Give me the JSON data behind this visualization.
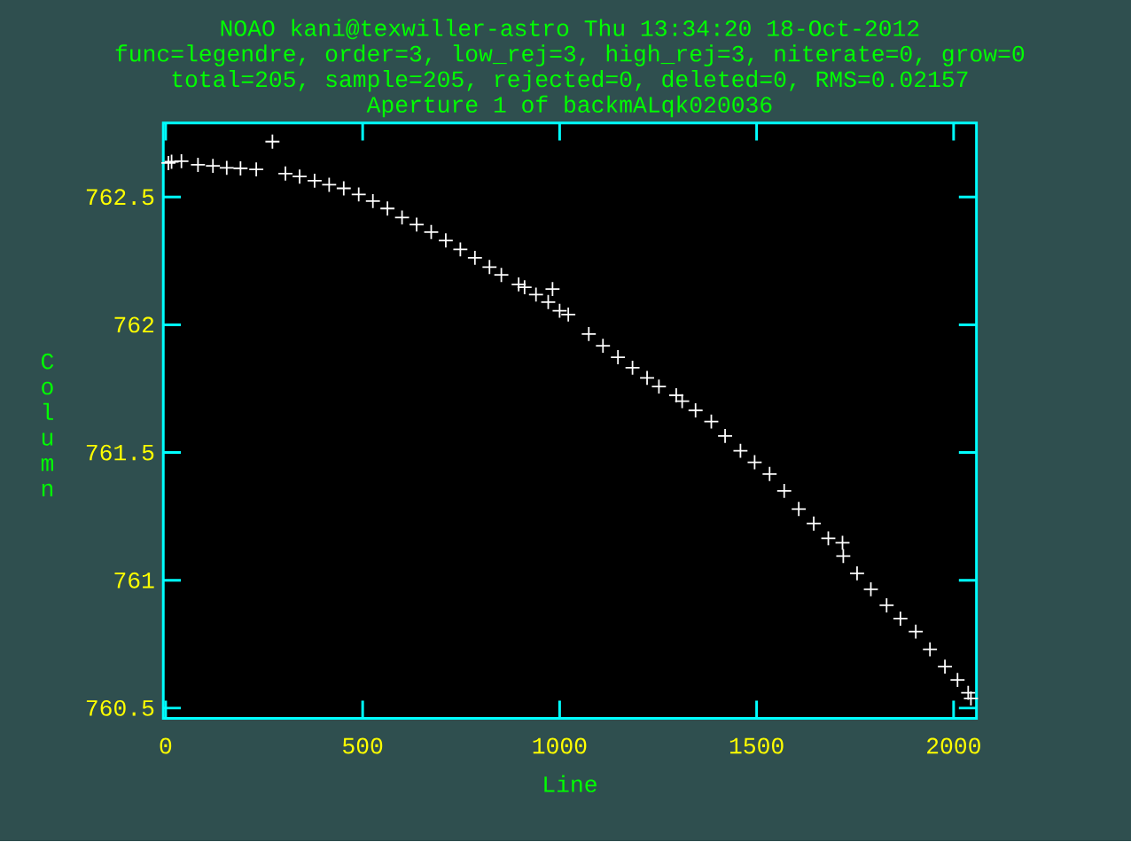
{
  "chart_data": {
    "type": "scatter",
    "title": "NOAO kani@texwiller-astro Thu 13:34:20 18-Oct-2012",
    "subtitle": "func=legendre, order=3, low_rej=3, high_rej=3, niterate=0, grow=0",
    "annotations": [
      "total=205, sample=205, rejected=0, deleted=0, RMS=0.02157",
      "Aperture 1 of backmALqk020036"
    ],
    "xlabel": "Line",
    "ylabel": "Column",
    "color": "#ffffff",
    "marker": "cross",
    "xlim": [
      -6,
      2058
    ],
    "ylim": [
      760.46,
      762.79
    ],
    "xticks": [
      0,
      500,
      1000,
      1500,
      2000
    ],
    "yticks": [
      760.5,
      761,
      761.5,
      762,
      762.5
    ],
    "x": [
      7,
      15,
      40,
      82,
      120,
      155,
      190,
      230,
      271,
      304,
      340,
      378,
      415,
      452,
      490,
      526,
      563,
      600,
      637,
      674,
      711,
      748,
      785,
      822,
      852,
      896,
      911,
      940,
      971,
      982,
      1000,
      1022,
      1074,
      1110,
      1148,
      1185,
      1222,
      1252,
      1296,
      1311,
      1345,
      1385,
      1420,
      1459,
      1495,
      1533,
      1570,
      1607,
      1645,
      1682,
      1718,
      1720,
      1755,
      1790,
      1830,
      1865,
      1904,
      1940,
      1978,
      2010,
      2037,
      2044
    ],
    "values": [
      762.633,
      762.638,
      762.64,
      762.626,
      762.622,
      762.614,
      762.612,
      762.608,
      762.717,
      762.592,
      762.58,
      762.564,
      762.548,
      762.534,
      762.51,
      762.484,
      762.455,
      762.42,
      762.392,
      762.363,
      762.33,
      762.295,
      762.262,
      762.226,
      762.195,
      762.158,
      762.147,
      762.118,
      762.089,
      762.14,
      762.055,
      762.04,
      761.964,
      761.918,
      761.873,
      761.832,
      761.792,
      761.758,
      761.724,
      761.701,
      761.665,
      761.621,
      761.565,
      761.507,
      761.462,
      761.416,
      761.35,
      761.279,
      761.222,
      761.164,
      761.147,
      761.095,
      761.027,
      760.965,
      760.902,
      760.85,
      760.799,
      760.73,
      760.662,
      760.61,
      760.56,
      760.537
    ]
  }
}
